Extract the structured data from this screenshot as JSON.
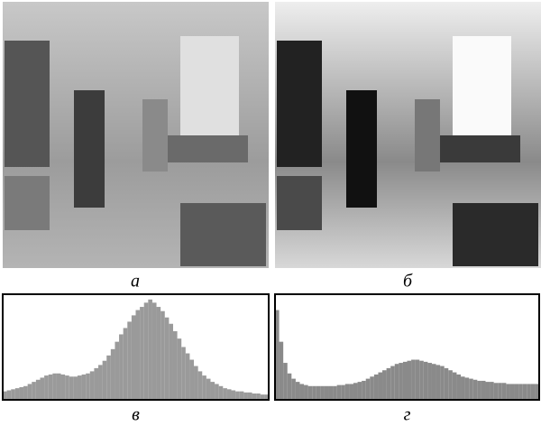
{
  "images": [
    {
      "label": "а"
    },
    {
      "label": "б"
    }
  ],
  "chart_data": [
    {
      "type": "histogram",
      "label": "в",
      "color": "#9a9a9a",
      "ylim": [
        0,
        100
      ],
      "bins": [
        0,
        4,
        8,
        12,
        16,
        20,
        24,
        28,
        32,
        36,
        40,
        44,
        48,
        52,
        56,
        60,
        64,
        68,
        72,
        76,
        80,
        84,
        88,
        92,
        96,
        100,
        104,
        108,
        112,
        116,
        120,
        124,
        128,
        132,
        136,
        140,
        144,
        148,
        152,
        156,
        160,
        164,
        168,
        172,
        176,
        180,
        184,
        188,
        192,
        196,
        200,
        204,
        208,
        212,
        216,
        220,
        224,
        228,
        232,
        236,
        240,
        244,
        248,
        252,
        256
      ],
      "values": [
        8,
        9,
        10,
        11,
        12,
        13,
        15,
        17,
        19,
        21,
        23,
        24,
        25,
        25,
        24,
        23,
        22,
        22,
        23,
        24,
        25,
        27,
        30,
        33,
        37,
        42,
        48,
        55,
        62,
        68,
        74,
        80,
        85,
        88,
        92,
        95,
        92,
        88,
        84,
        78,
        72,
        65,
        58,
        50,
        44,
        38,
        32,
        27,
        23,
        20,
        17,
        15,
        13,
        11,
        10,
        9,
        8,
        8,
        7,
        7,
        6,
        6,
        5,
        5
      ]
    },
    {
      "type": "histogram",
      "label": "г",
      "color": "#8a8a8a",
      "ylim": [
        0,
        100
      ],
      "bins": [
        0,
        4,
        8,
        12,
        16,
        20,
        24,
        28,
        32,
        36,
        40,
        44,
        48,
        52,
        56,
        60,
        64,
        68,
        72,
        76,
        80,
        84,
        88,
        92,
        96,
        100,
        104,
        108,
        112,
        116,
        120,
        124,
        128,
        132,
        136,
        140,
        144,
        148,
        152,
        156,
        160,
        164,
        168,
        172,
        176,
        180,
        184,
        188,
        192,
        196,
        200,
        204,
        208,
        212,
        216,
        220,
        224,
        228,
        232,
        236,
        240,
        244,
        248,
        252,
        256
      ],
      "values": [
        85,
        55,
        35,
        25,
        20,
        17,
        15,
        14,
        13,
        13,
        13,
        13,
        13,
        13,
        13,
        14,
        14,
        15,
        15,
        16,
        17,
        18,
        20,
        22,
        24,
        26,
        28,
        30,
        32,
        34,
        35,
        36,
        37,
        38,
        38,
        37,
        36,
        35,
        34,
        33,
        32,
        30,
        28,
        26,
        24,
        22,
        21,
        20,
        19,
        18,
        18,
        17,
        17,
        16,
        16,
        16,
        15,
        15,
        15,
        15,
        15,
        15,
        15,
        15
      ]
    }
  ]
}
